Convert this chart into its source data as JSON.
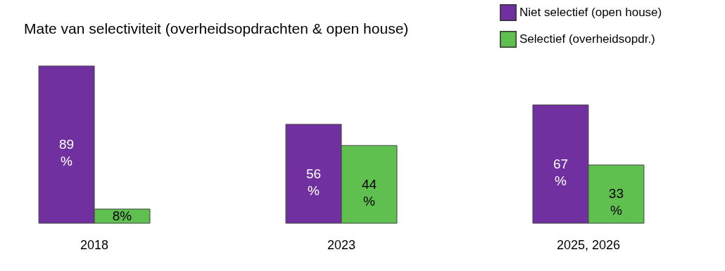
{
  "chart_data": {
    "type": "bar",
    "title": "Mate van selectiviteit (overheidsopdrachten & open house)",
    "categories": [
      "2018",
      "2023",
      "2025, 2026"
    ],
    "series": [
      {
        "name": "Niet selectief (open house)",
        "color": "#7030a0",
        "values": [
          89,
          56,
          67
        ],
        "value_labels": [
          "89 %",
          "56 %",
          "67 %"
        ]
      },
      {
        "name": "Selectief (overheidsopdr.)",
        "color": "#5fbf4f",
        "values": [
          8,
          44,
          33
        ],
        "value_labels": [
          "8%",
          "44 %",
          "33 %"
        ]
      }
    ],
    "legend": "top right"
  }
}
